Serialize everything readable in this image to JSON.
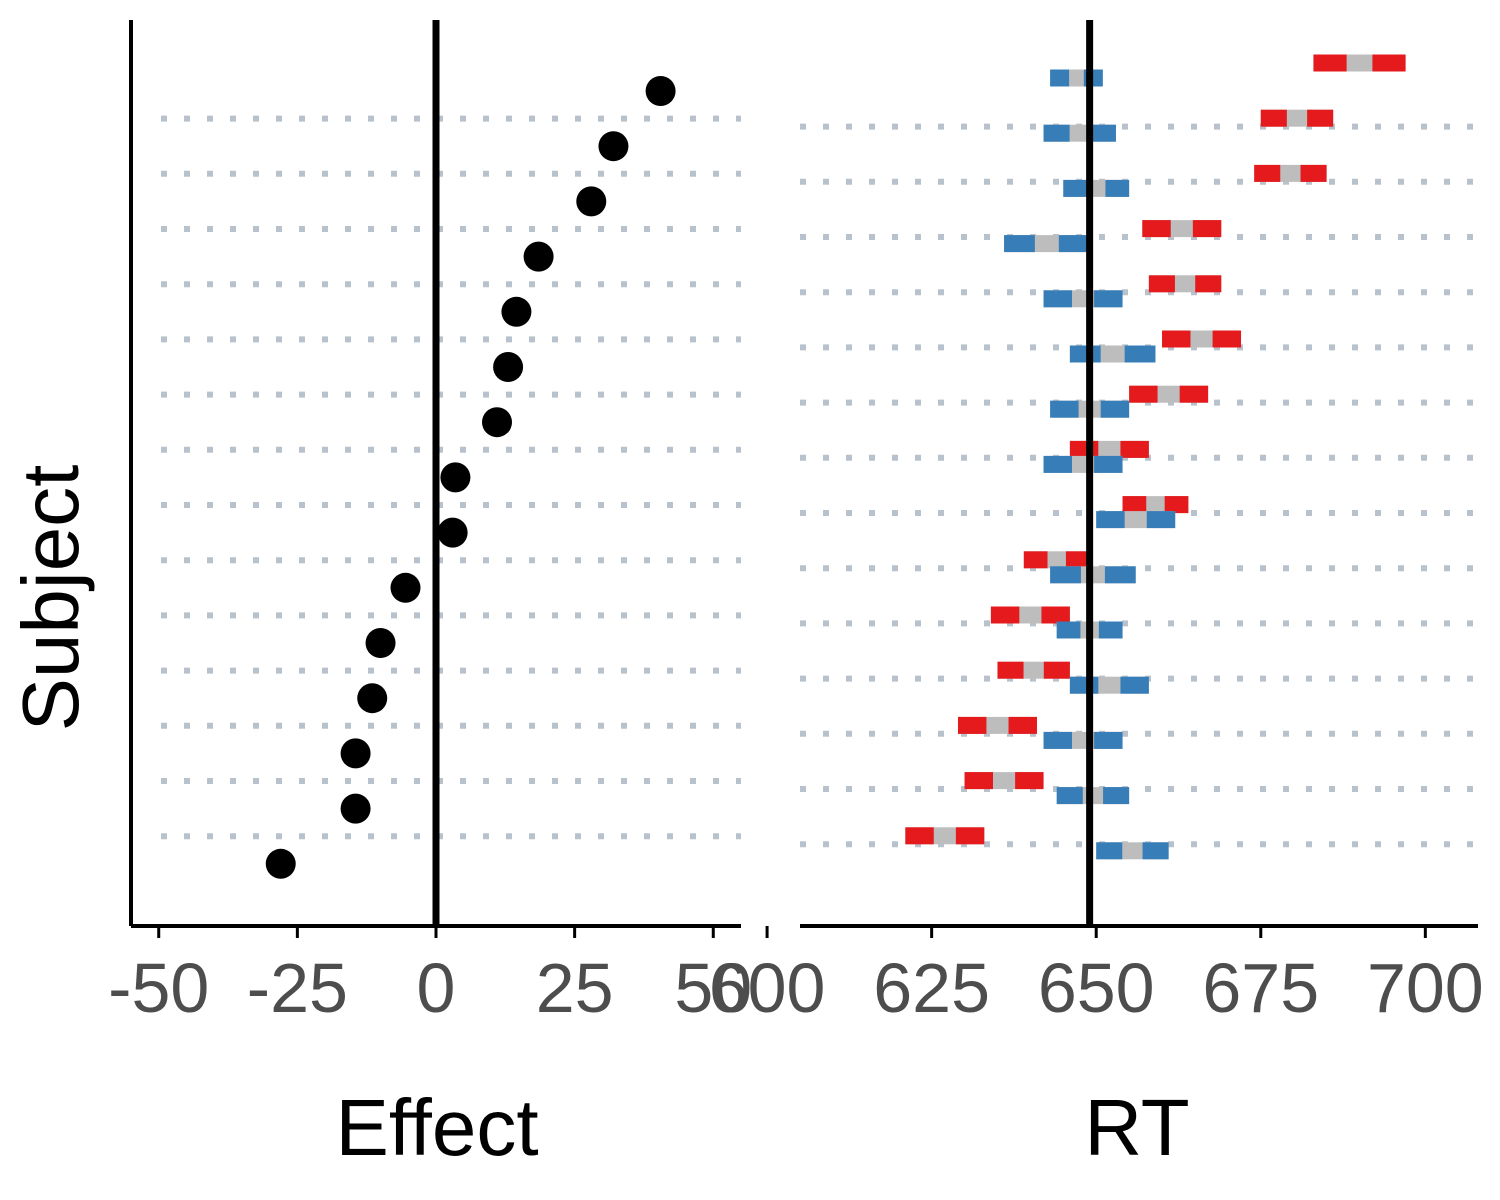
{
  "chart_data": [
    {
      "type": "scatter",
      "xlabel": "Effect",
      "ylabel": "Subject",
      "xlim": [
        -55,
        55
      ],
      "xticks": [
        "-50",
        "-25",
        "0",
        "25",
        "50"
      ],
      "reference_line_x": 0,
      "grid": "dotted horizontal lines between rows",
      "points": [
        40.5,
        32,
        28,
        18.5,
        14.5,
        13,
        11,
        3.5,
        3,
        -5.5,
        -10,
        -11.5,
        -14.5,
        -14.5,
        -28
      ]
    },
    {
      "type": "dot-range",
      "xlabel": "RT",
      "xlim": [
        605,
        708
      ],
      "xticks": [
        "600",
        "625",
        "650",
        "675",
        "700"
      ],
      "reference_line_x": 649,
      "grid": "dotted horizontal lines between rows",
      "colors": {
        "red": "#e41a1c",
        "blue": "#377eb8",
        "gray": "#bdbdbd"
      },
      "rows": [
        {
          "red": [
            683,
            697
          ],
          "blue": [
            643,
            651
          ]
        },
        {
          "red": [
            675,
            686
          ],
          "blue": [
            642,
            653
          ]
        },
        {
          "red": [
            674,
            685
          ],
          "blue": [
            645,
            655
          ]
        },
        {
          "red": [
            657,
            669
          ],
          "blue": [
            636,
            649
          ]
        },
        {
          "red": [
            658,
            669
          ],
          "blue": [
            642,
            654
          ]
        },
        {
          "red": [
            660,
            672
          ],
          "blue": [
            646,
            659
          ]
        },
        {
          "red": [
            655,
            667
          ],
          "blue": [
            643,
            655
          ]
        },
        {
          "red": [
            646,
            658
          ],
          "blue": [
            642,
            654
          ]
        },
        {
          "red": [
            654,
            664
          ],
          "blue": [
            650,
            662
          ]
        },
        {
          "red": [
            639,
            649
          ],
          "blue": [
            643,
            656
          ]
        },
        {
          "red": [
            634,
            646
          ],
          "blue": [
            644,
            654
          ]
        },
        {
          "red": [
            635,
            646
          ],
          "blue": [
            646,
            658
          ]
        },
        {
          "red": [
            629,
            641
          ],
          "blue": [
            642,
            654
          ]
        },
        {
          "red": [
            630,
            642
          ],
          "blue": [
            644,
            655
          ]
        },
        {
          "red": [
            621,
            633
          ],
          "blue": [
            650,
            661
          ]
        }
      ]
    }
  ]
}
